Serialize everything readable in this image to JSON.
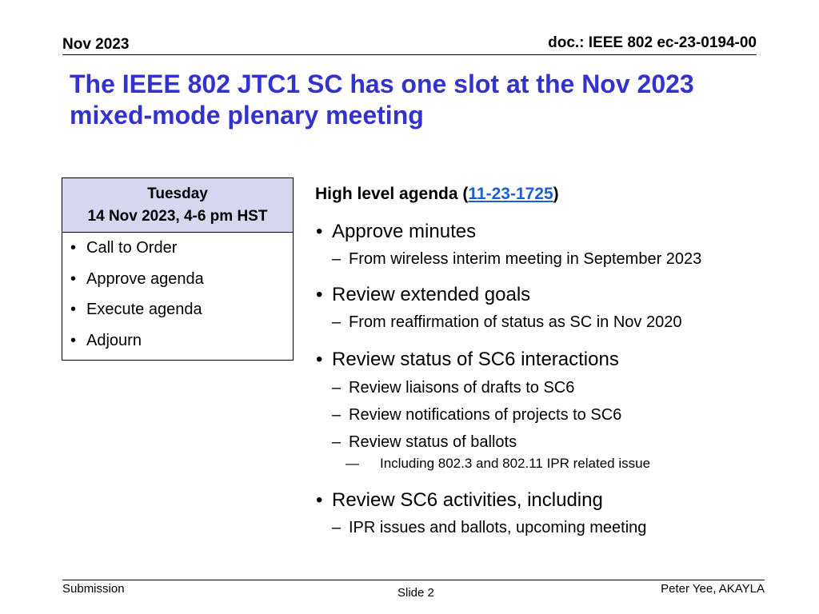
{
  "header": {
    "date": "Nov 2023",
    "doc": "doc.: IEEE 802 ec-23-0194-00"
  },
  "title": {
    "line1": "The IEEE 802 JTC1 SC has one slot at the Nov 2023",
    "line2": "mixed-mode plenary meeting"
  },
  "session": {
    "day": "Tuesday",
    "when": "14 Nov 2023, 4-6 pm HST",
    "items": [
      "Call to Order",
      "Approve agenda",
      "Execute agenda",
      "Adjourn"
    ]
  },
  "agenda": {
    "heading_prefix": "High level agenda (",
    "link_text": "11-23-1725",
    "heading_suffix": ")",
    "sections": [
      {
        "label": "Approve minutes",
        "subs": [
          {
            "text": "From wireless interim meeting in September 2023"
          }
        ]
      },
      {
        "label": "Review extended goals",
        "subs": [
          {
            "text": "From reaffirmation of status as SC in Nov 2020"
          }
        ]
      },
      {
        "label": "Review status of SC6 interactions",
        "subs": [
          {
            "text": "Review liaisons of drafts to SC6"
          },
          {
            "text": "Review notifications of projects to SC6"
          },
          {
            "text": "Review status of ballots",
            "subs": [
              "Including 802.3 and 802.11 IPR related issue"
            ]
          }
        ]
      },
      {
        "label": "Review SC6 activities, including",
        "subs": [
          {
            "text": "IPR issues and ballots, upcoming meeting"
          }
        ]
      }
    ]
  },
  "footer": {
    "left": "Submission",
    "center": "Slide 2",
    "right": "Peter Yee, AKAYLA"
  }
}
